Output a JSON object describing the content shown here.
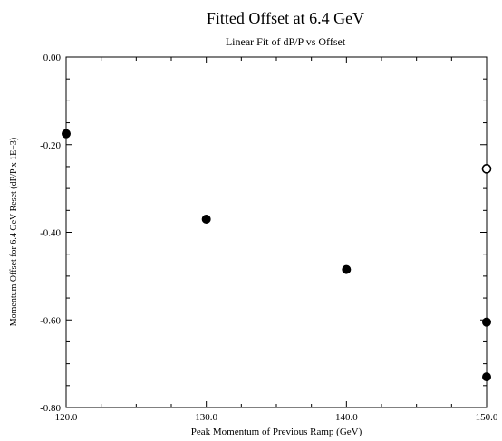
{
  "chart_data": {
    "type": "scatter",
    "title": "Fitted Offset at 6.4 GeV",
    "subtitle": "Linear Fit of dP/P vs Offset",
    "xlabel": "Peak Momentum of Previous Ramp (GeV)",
    "ylabel": "Momentum Offset for 6.4 GeV Reset (dP/P x 1E−3)",
    "xlim": [
      120.0,
      150.0
    ],
    "ylim": [
      -0.8,
      0.0
    ],
    "x_ticks": [
      "120.0",
      "130.0",
      "140.0",
      "150.0"
    ],
    "x_tick_values": [
      120,
      130,
      140,
      150
    ],
    "y_ticks": [
      "0.00",
      "-0.20",
      "-0.40",
      "-0.60",
      "-0.80"
    ],
    "y_tick_values": [
      0.0,
      -0.2,
      -0.4,
      -0.6,
      -0.8
    ],
    "grid": false,
    "points": [
      {
        "x": 120.0,
        "y": -0.175,
        "marker": "filled"
      },
      {
        "x": 130.0,
        "y": -0.37,
        "marker": "filled"
      },
      {
        "x": 140.0,
        "y": -0.485,
        "marker": "filled"
      },
      {
        "x": 150.0,
        "y": -0.605,
        "marker": "filled"
      },
      {
        "x": 150.0,
        "y": -0.73,
        "marker": "filled"
      },
      {
        "x": 150.0,
        "y": -0.255,
        "marker": "open"
      }
    ],
    "colors": {
      "marker": "#000000",
      "axis": "#000000",
      "background": "#ffffff"
    }
  }
}
